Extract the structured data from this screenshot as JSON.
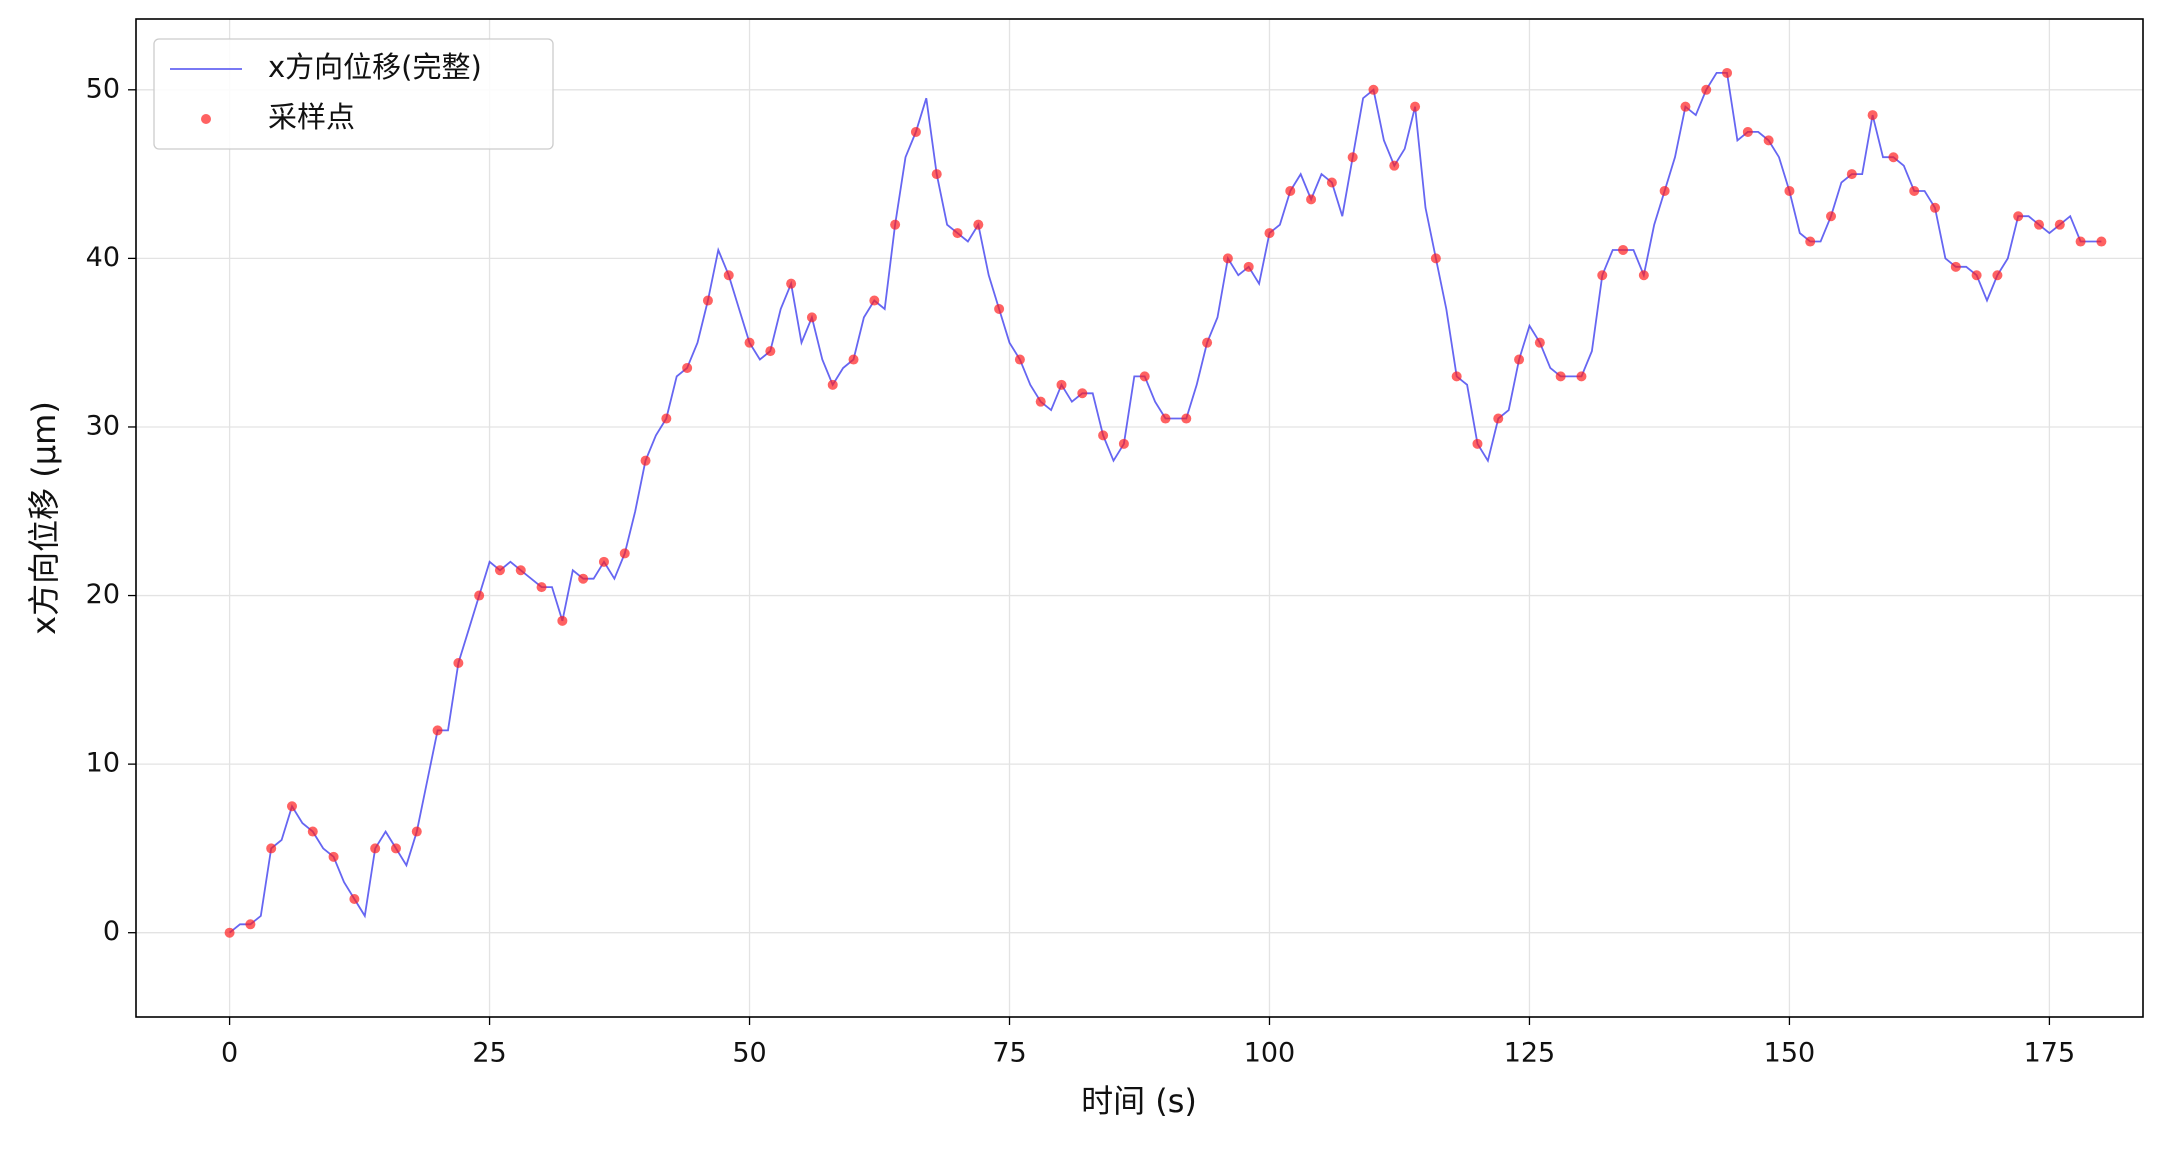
{
  "chart_data": {
    "type": "line",
    "xlabel": "时间 (s)",
    "ylabel": "x方向位移 (μm)",
    "xlim": [
      -9,
      184
    ],
    "ylim": [
      -5,
      54.2
    ],
    "xticks": [
      0,
      25,
      50,
      75,
      100,
      125,
      150,
      175
    ],
    "yticks": [
      0,
      10,
      20,
      30,
      40,
      50
    ],
    "grid": true,
    "legend": "upper-left",
    "series": [
      {
        "name": "x方向位移(完整)",
        "color": "#3333ee",
        "kind": "line",
        "x": [
          0,
          1,
          2,
          3,
          4,
          5,
          6,
          7,
          8,
          9,
          10,
          11,
          12,
          13,
          14,
          15,
          16,
          17,
          18,
          19,
          20,
          21,
          22,
          23,
          24,
          25,
          26,
          27,
          28,
          29,
          30,
          31,
          32,
          33,
          34,
          35,
          36,
          37,
          38,
          39,
          40,
          41,
          42,
          43,
          44,
          45,
          46,
          47,
          48,
          49,
          50,
          51,
          52,
          53,
          54,
          55,
          56,
          57,
          58,
          59,
          60,
          61,
          62,
          63,
          64,
          65,
          66,
          67,
          68,
          69,
          70,
          71,
          72,
          73,
          74,
          75,
          76,
          77,
          78,
          79,
          80,
          81,
          82,
          83,
          84,
          85,
          86,
          87,
          88,
          89,
          90,
          91,
          92,
          93,
          94,
          95,
          96,
          97,
          98,
          99,
          100,
          101,
          102,
          103,
          104,
          105,
          106,
          107,
          108,
          109,
          110,
          111,
          112,
          113,
          114,
          115,
          116,
          117,
          118,
          119,
          120,
          121,
          122,
          123,
          124,
          125,
          126,
          127,
          128,
          129,
          130,
          131,
          132,
          133,
          134,
          135,
          136,
          137,
          138,
          139,
          140,
          141,
          142,
          143,
          144,
          145,
          146,
          147,
          148,
          149,
          150,
          151,
          152,
          153,
          154,
          155,
          156,
          157,
          158,
          159,
          160,
          161,
          162,
          163,
          164,
          165,
          166,
          167,
          168,
          169,
          170,
          171,
          172,
          173,
          174,
          175,
          176,
          177,
          178,
          179,
          180
        ],
        "values": [
          0,
          0.5,
          0.5,
          1,
          5,
          5.5,
          7.5,
          6.5,
          6,
          5,
          4.5,
          3,
          2,
          1,
          5,
          6,
          5,
          4,
          6,
          9,
          12,
          12,
          16,
          18,
          20,
          22,
          21.5,
          22,
          21.5,
          21,
          20.5,
          20.5,
          18.5,
          21.5,
          21,
          21,
          22,
          21,
          22.5,
          25,
          28,
          29.5,
          30.5,
          33,
          33.5,
          35,
          37.5,
          40.5,
          39,
          37,
          35,
          34,
          34.5,
          37,
          38.5,
          35,
          36.5,
          34,
          32.5,
          33.5,
          34,
          36.5,
          37.5,
          37,
          42,
          46,
          47.5,
          49.5,
          45,
          42,
          41.5,
          41,
          42,
          39,
          37,
          35,
          34,
          32.5,
          31.5,
          31,
          32.5,
          31.5,
          32,
          32,
          29.5,
          28,
          29,
          33,
          33,
          31.5,
          30.5,
          30.5,
          30.5,
          32.5,
          35,
          36.5,
          40,
          39,
          39.5,
          38.5,
          41.5,
          42,
          44,
          45,
          43.5,
          45,
          44.5,
          42.5,
          46,
          49.5,
          50,
          47,
          45.5,
          46.5,
          49,
          43,
          40,
          37,
          33,
          32.5,
          29,
          28,
          30.5,
          31,
          34,
          36,
          35,
          33.5,
          33,
          33,
          33,
          34.5,
          39,
          40.5,
          40.5,
          40.5,
          39,
          42,
          44,
          46,
          49,
          48.5,
          50,
          51,
          51,
          47,
          47.5,
          47.5,
          47,
          46,
          44,
          41.5,
          41,
          41,
          42.5,
          44.5,
          45,
          45,
          48.5,
          46,
          46,
          45.5,
          44,
          44,
          43,
          40,
          39.5,
          39.5,
          39,
          37.5,
          39,
          40,
          42.5,
          42.5,
          42,
          41.5,
          42,
          42.5,
          41,
          41,
          41
        ]
      },
      {
        "name": "采样点",
        "color": "#ff2020",
        "kind": "scatter",
        "x": [
          0,
          2,
          4,
          6,
          8,
          10,
          12,
          14,
          16,
          18,
          20,
          22,
          24,
          26,
          28,
          30,
          32,
          34,
          36,
          38,
          40,
          42,
          44,
          46,
          48,
          50,
          52,
          54,
          56,
          58,
          60,
          62,
          64,
          66,
          68,
          70,
          72,
          74,
          76,
          78,
          80,
          82,
          84,
          86,
          88,
          90,
          92,
          94,
          96,
          98,
          100,
          102,
          104,
          106,
          108,
          110,
          112,
          114,
          116,
          118,
          120,
          122,
          124,
          126,
          128,
          130,
          132,
          134,
          136,
          138,
          140,
          142,
          144,
          146,
          148,
          150,
          152,
          154,
          156,
          158,
          160,
          162,
          164,
          166,
          168,
          170,
          172,
          174,
          176,
          178,
          180
        ],
        "values": [
          0,
          0.5,
          5,
          7.5,
          6,
          4.5,
          2,
          5,
          5,
          6,
          12,
          16,
          20,
          21.5,
          21.5,
          20.5,
          18.5,
          21,
          22,
          22.5,
          28,
          30.5,
          33.5,
          37.5,
          39,
          35,
          34.5,
          38.5,
          36.5,
          32.5,
          34,
          37.5,
          42,
          47.5,
          45,
          41.5,
          42,
          37,
          34,
          31.5,
          32.5,
          32,
          29.5,
          29,
          33,
          30.5,
          30.5,
          35,
          40,
          39.5,
          41.5,
          44,
          43.5,
          44.5,
          46,
          50,
          45.5,
          49,
          40,
          33,
          29,
          30.5,
          34,
          35,
          33,
          33,
          39,
          40.5,
          39,
          44,
          49,
          50,
          51,
          47.5,
          47,
          44,
          41,
          42.5,
          45,
          48.5,
          46,
          44,
          43,
          39.5,
          39,
          39,
          42.5,
          42,
          42,
          41,
          41
        ]
      }
    ]
  }
}
